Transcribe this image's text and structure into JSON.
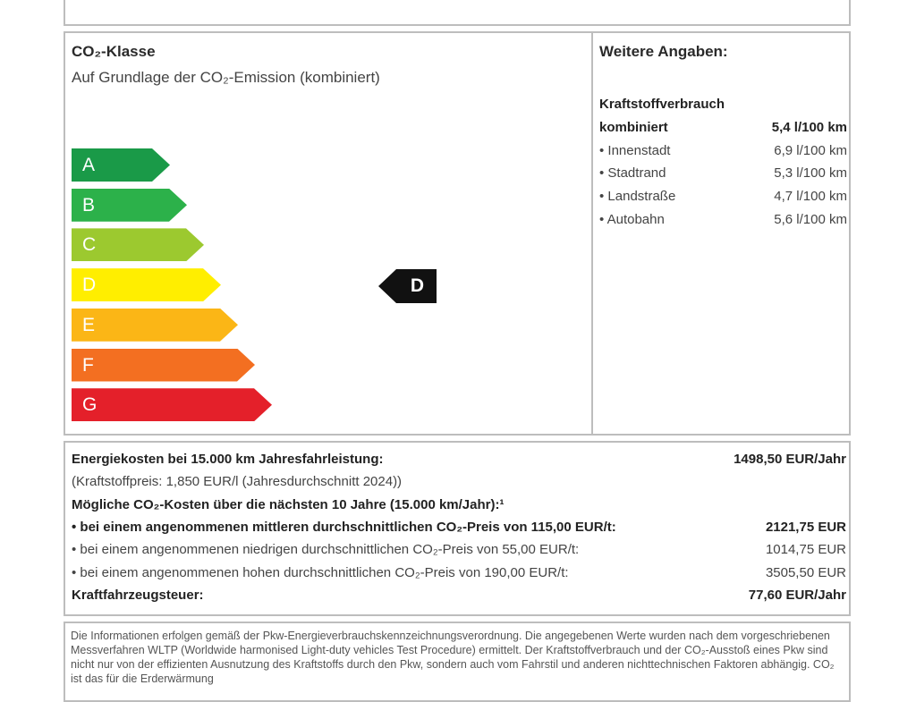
{
  "co2": {
    "title": "CO₂-Klasse",
    "subtitle": "Auf Grundlage der CO₂-Emission (kombiniert)",
    "classes": [
      {
        "label": "A",
        "color": "#1a9a48"
      },
      {
        "label": "B",
        "color": "#2cb14a"
      },
      {
        "label": "C",
        "color": "#9cc92f"
      },
      {
        "label": "D",
        "color": "#ffee00"
      },
      {
        "label": "E",
        "color": "#fbb616"
      },
      {
        "label": "F",
        "color": "#f36f21"
      },
      {
        "label": "G",
        "color": "#e4202a"
      }
    ],
    "current_class": "D"
  },
  "weitere": {
    "title": "Weitere Angaben:",
    "subtitle": "Kraftstoffverbrauch",
    "rows": [
      {
        "label": "kombiniert",
        "value": "5,4 l/100 km"
      },
      {
        "label": "• Innenstadt",
        "value": "6,9 l/100 km"
      },
      {
        "label": "• Stadtrand",
        "value": "5,3 l/100 km"
      },
      {
        "label": "• Landstraße",
        "value": "4,7 l/100 km"
      },
      {
        "label": "• Autobahn",
        "value": "5,6 l/100 km"
      }
    ]
  },
  "costs": {
    "rows": [
      {
        "label": "Energiekosten bei 15.000 km Jahresfahrleistung:",
        "value": "1498,50 EUR/Jahr"
      },
      {
        "label": "(Kraftstoffpreis: 1,850 EUR/l (Jahresdurchschnitt 2024))",
        "value": ""
      },
      {
        "label": "Mögliche CO₂-Kosten über die nächsten 10 Jahre (15.000 km/Jahr):¹",
        "value": ""
      },
      {
        "label": "• bei einem angenommenen mittleren durchschnittlichen CO₂-Preis von 115,00 EUR/t:",
        "value": "2121,75 EUR"
      },
      {
        "label": "• bei einem angenommenen niedrigen durchschnittlichen CO₂-Preis von 55,00 EUR/t:",
        "value": "1014,75 EUR"
      },
      {
        "label": "• bei einem angenommenen hohen durchschnittlichen CO₂-Preis von 190,00 EUR/t:",
        "value": "3505,50 EUR"
      },
      {
        "label": "Kraftfahrzeugsteuer:",
        "value": "77,60 EUR/Jahr"
      }
    ]
  },
  "footer": {
    "text": "Die Informationen erfolgen gemäß der Pkw-Energieverbrauchskennzeichnungsverordnung. Die angegebenen Werte wurden nach dem vorgeschriebenen Messverfahren WLTP (Worldwide harmonised Light-duty vehicles Test Procedure) ermittelt. Der Kraftstoffverbrauch und der CO₂-Ausstoß eines Pkw sind nicht nur von der effizienten Ausnutzung des Kraftstoffs durch den Pkw, sondern auch vom Fahrstil und anderen nichttechnischen Faktoren abhängig. CO₂ ist das für die Erderwärmung"
  }
}
